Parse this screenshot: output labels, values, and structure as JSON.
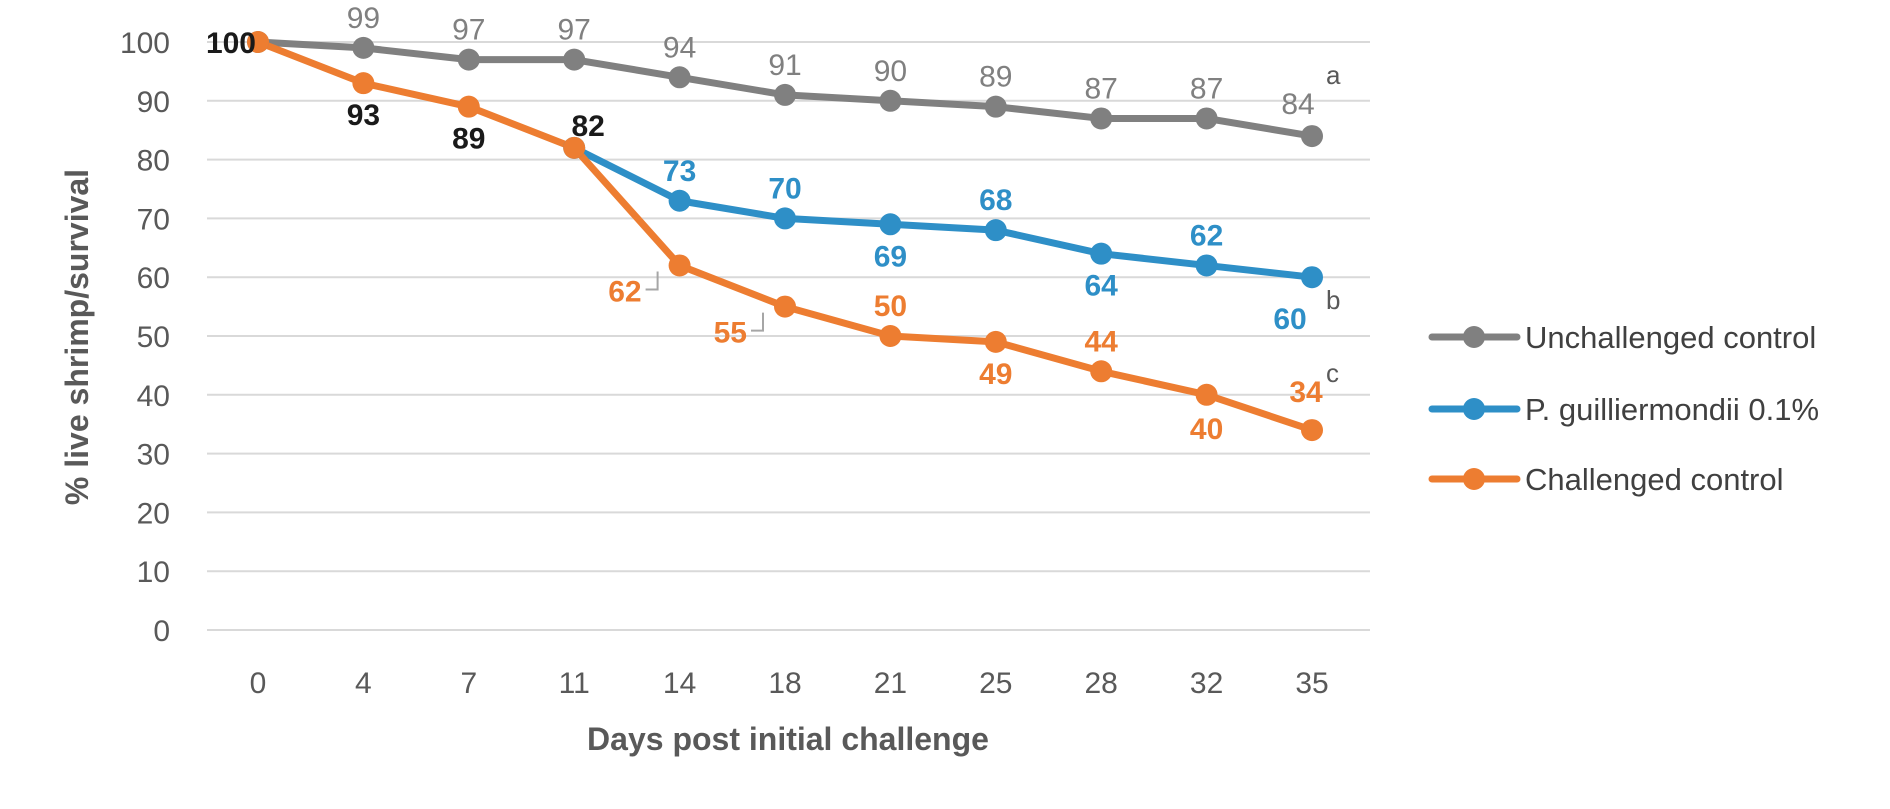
{
  "chart_data": {
    "type": "line",
    "title": "",
    "xlabel": "Days post initial challenge",
    "ylabel": "% live shrimp/survival",
    "categories": [
      "0",
      "4",
      "7",
      "11",
      "14",
      "18",
      "21",
      "25",
      "28",
      "32",
      "35"
    ],
    "yticks": [
      "0",
      "10",
      "20",
      "30",
      "40",
      "50",
      "60",
      "70",
      "80",
      "90",
      "100"
    ],
    "ylim": [
      0,
      100
    ],
    "grid": true,
    "legend_position": "right",
    "series": [
      {
        "name": "Unchallenged control",
        "color": "#808080",
        "label_color": "#808080",
        "values": [
          100,
          99,
          97,
          97,
          94,
          91,
          90,
          89,
          87,
          87,
          84
        ],
        "labels": [
          "100",
          "99",
          "97",
          "97",
          "94",
          "91",
          "90",
          "89",
          "87",
          "87",
          "84"
        ],
        "label_positions": [
          "left",
          "above",
          "above",
          "above",
          "above",
          "above",
          "above",
          "above",
          "above",
          "above",
          "above"
        ],
        "significance": "a"
      },
      {
        "name": "P. guilliermondii 0.1%",
        "color": "#2E8FC7",
        "label_color": "#2E8FC7",
        "values": [
          null,
          null,
          null,
          82,
          73,
          70,
          69,
          68,
          64,
          62,
          60
        ],
        "labels": [
          "",
          "",
          "",
          "",
          "73",
          "70",
          "69",
          "68",
          "64",
          "62",
          "60"
        ],
        "label_positions": [
          "",
          "",
          "",
          "",
          "above",
          "above",
          "below",
          "above",
          "below",
          "above",
          "below"
        ],
        "significance": "b"
      },
      {
        "name": "Challenged control",
        "color": "#ED7D31",
        "label_color": "#ED7D31",
        "values": [
          100,
          93,
          89,
          82,
          62,
          55,
          50,
          49,
          44,
          40,
          34
        ],
        "labels": [
          "",
          "93",
          "89",
          "82",
          "62",
          "55",
          "50",
          "49",
          "44",
          "40",
          "34"
        ],
        "label_positions": [
          "",
          "below",
          "below",
          "above",
          "left",
          "left",
          "above",
          "below",
          "above",
          "below",
          "above"
        ],
        "significance": "c"
      }
    ],
    "shared_label_color": "#1A1A1A",
    "shared_labels": [
      "100",
      "93",
      "89",
      "82"
    ]
  }
}
